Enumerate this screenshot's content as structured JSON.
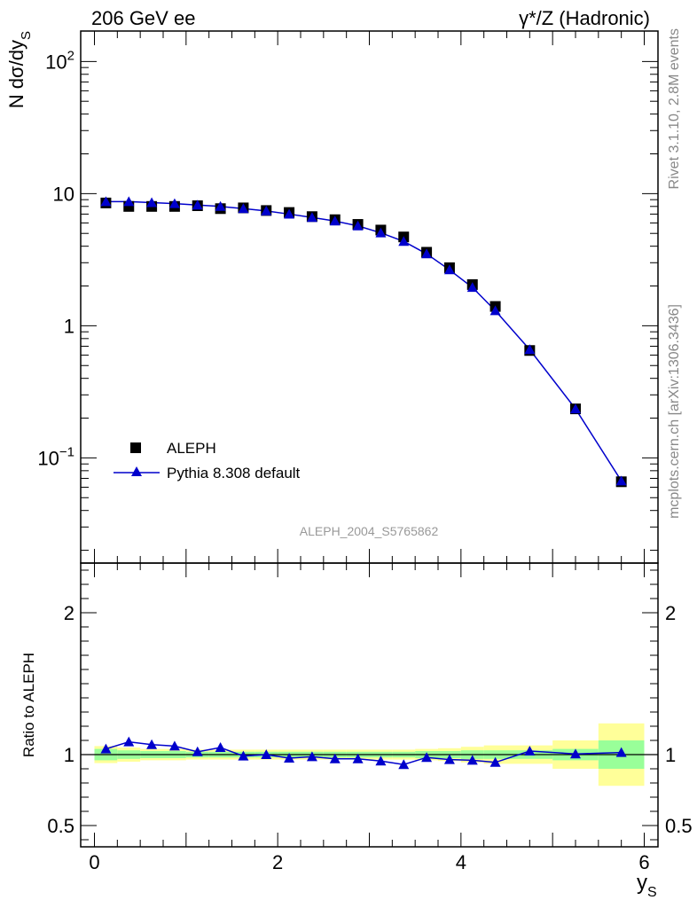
{
  "header": {
    "left_title": "206 GeV ee",
    "right_title": "γ*/Z (Hadronic)"
  },
  "side_labels": {
    "rivet_info": "Rivet 3.1.10,  2.8M events",
    "mcplots_ref": "mcplots.cern.ch [arXiv:1306.3436]"
  },
  "analysis_id": "ALEPH_2004_S5765862",
  "legend": {
    "data_label": "ALEPH",
    "mc_label": "Pythia 8.308 default"
  },
  "colors": {
    "data": "#000000",
    "mc": "#0000cc",
    "band_inner": "#99ff99",
    "band_outer": "#ffff99"
  },
  "chart_data": [
    {
      "type": "scatter",
      "panel": "main",
      "title": "",
      "xlabel": "y_S",
      "ylabel": "N dσ/dy_S",
      "yscale": "log",
      "xlim": [
        -0.15,
        6.15
      ],
      "ylim": [
        0.016,
        170
      ],
      "ytick_labels": [
        "10^-1",
        "1",
        "10",
        "10^2"
      ],
      "x": [
        0.125,
        0.375,
        0.625,
        0.875,
        1.125,
        1.375,
        1.625,
        1.875,
        2.125,
        2.375,
        2.625,
        2.875,
        3.125,
        3.375,
        3.625,
        3.875,
        4.125,
        4.375,
        4.75,
        5.25,
        5.75
      ],
      "series": [
        {
          "name": "ALEPH",
          "marker": "square",
          "values": [
            8.5,
            8.0,
            8.0,
            8.0,
            8.1,
            7.7,
            7.8,
            7.45,
            7.2,
            6.7,
            6.35,
            5.85,
            5.3,
            4.7,
            3.6,
            2.75,
            2.05,
            1.4,
            0.65,
            0.235,
            0.066
          ]
        },
        {
          "name": "Pythia 8.308 default",
          "marker": "triangle",
          "values": [
            8.7,
            8.7,
            8.55,
            8.4,
            8.2,
            8.0,
            7.7,
            7.4,
            7.0,
            6.6,
            6.2,
            5.7,
            5.05,
            4.35,
            3.5,
            2.65,
            1.95,
            1.3,
            0.66,
            0.235,
            0.067
          ]
        }
      ]
    },
    {
      "type": "line",
      "panel": "ratio",
      "title": "",
      "xlabel": "y_S",
      "ylabel": "Ratio to ALEPH",
      "xlim": [
        -0.15,
        6.15
      ],
      "ylim": [
        0.35,
        2.35
      ],
      "xticks": [
        0,
        2,
        4,
        6
      ],
      "yticks": [
        0.5,
        1,
        2
      ],
      "x": [
        0.125,
        0.375,
        0.625,
        0.875,
        1.125,
        1.375,
        1.625,
        1.875,
        2.125,
        2.375,
        2.625,
        2.875,
        3.125,
        3.375,
        3.625,
        3.875,
        4.125,
        4.375,
        4.75,
        5.25,
        5.75
      ],
      "series": [
        {
          "name": "Pythia 8.308 default",
          "values": [
            1.04,
            1.09,
            1.07,
            1.06,
            1.02,
            1.05,
            0.99,
            1.0,
            0.975,
            0.985,
            0.97,
            0.97,
            0.955,
            0.93,
            0.98,
            0.965,
            0.96,
            0.945,
            1.025,
            1.005,
            1.015
          ]
        }
      ],
      "bands": {
        "bins": [
          [
            0.0,
            0.25
          ],
          [
            0.25,
            0.5
          ],
          [
            0.5,
            0.75
          ],
          [
            0.75,
            1.0
          ],
          [
            1.0,
            1.25
          ],
          [
            1.25,
            1.5
          ],
          [
            1.5,
            1.75
          ],
          [
            1.75,
            2.0
          ],
          [
            2.0,
            2.25
          ],
          [
            2.25,
            2.5
          ],
          [
            2.5,
            2.75
          ],
          [
            2.75,
            3.0
          ],
          [
            3.0,
            3.25
          ],
          [
            3.25,
            3.5
          ],
          [
            3.5,
            3.75
          ],
          [
            3.75,
            4.0
          ],
          [
            4.0,
            4.25
          ],
          [
            4.25,
            4.5
          ],
          [
            4.5,
            5.0
          ],
          [
            5.0,
            5.5
          ],
          [
            5.5,
            6.0
          ]
        ],
        "inner": [
          0.04,
          0.03,
          0.025,
          0.025,
          0.02,
          0.02,
          0.02,
          0.02,
          0.02,
          0.02,
          0.02,
          0.02,
          0.02,
          0.02,
          0.025,
          0.025,
          0.03,
          0.03,
          0.03,
          0.04,
          0.1
        ],
        "outer": [
          0.06,
          0.05,
          0.04,
          0.04,
          0.035,
          0.035,
          0.035,
          0.035,
          0.035,
          0.035,
          0.035,
          0.035,
          0.035,
          0.035,
          0.04,
          0.045,
          0.055,
          0.065,
          0.065,
          0.1,
          0.22
        ]
      }
    }
  ]
}
